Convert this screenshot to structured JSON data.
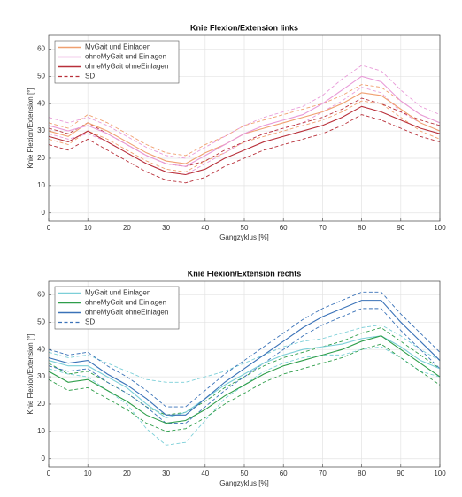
{
  "chart_data": [
    {
      "type": "line",
      "title": "Knie Flexion/Extension links",
      "x_label": "Gangzyklus [%]",
      "y_label": "Knie Flexion/Extension [°]",
      "x": [
        0,
        5,
        10,
        15,
        20,
        25,
        30,
        35,
        40,
        45,
        50,
        55,
        60,
        65,
        70,
        75,
        80,
        85,
        90,
        95,
        100
      ],
      "xlim": [
        0,
        100
      ],
      "xticks": [
        0,
        10,
        20,
        30,
        40,
        50,
        60,
        70,
        80,
        90,
        100
      ],
      "ylim": [
        -3,
        65
      ],
      "yticks": [
        0,
        10,
        20,
        30,
        40,
        50,
        60
      ],
      "grid": true,
      "legend": "upper left",
      "sd_label": "SD",
      "series": [
        {
          "name": "MyGait und Einlagen",
          "color": "#f0a070",
          "values": [
            30,
            28,
            33,
            30,
            26,
            22,
            19,
            18,
            22,
            25,
            29,
            31,
            33,
            35,
            37,
            40,
            44,
            43,
            38,
            33,
            30
          ],
          "sd_upper": [
            33,
            31,
            36,
            33,
            29,
            25,
            22,
            21,
            25,
            28,
            32,
            34,
            36,
            38,
            40,
            43,
            47,
            46,
            41,
            36,
            33
          ],
          "sd_lower": [
            27,
            25,
            30,
            27,
            23,
            19,
            16,
            15,
            19,
            22,
            26,
            28,
            30,
            32,
            34,
            37,
            41,
            40,
            35,
            30,
            27
          ]
        },
        {
          "name": "ohneMyGait und Einlagen",
          "color": "#e89ad8",
          "values": [
            32,
            30,
            32,
            29,
            25,
            21,
            18,
            17,
            21,
            25,
            29,
            32,
            34,
            36,
            40,
            45,
            50,
            48,
            41,
            36,
            33
          ],
          "sd_upper": [
            35,
            33,
            35,
            32,
            28,
            24,
            21,
            20,
            24,
            28,
            32,
            35,
            37,
            39,
            43,
            49,
            54,
            52,
            45,
            39,
            36
          ],
          "sd_lower": [
            29,
            27,
            29,
            26,
            22,
            18,
            15,
            14,
            18,
            22,
            26,
            29,
            31,
            33,
            37,
            41,
            46,
            44,
            37,
            33,
            30
          ]
        },
        {
          "name": "ohneMyGait ohneEinlagen",
          "color": "#b8303a",
          "values": [
            28,
            26,
            30,
            26,
            22,
            18,
            15,
            14,
            16,
            20,
            23,
            26,
            28,
            30,
            32,
            35,
            39,
            37,
            34,
            31,
            29
          ],
          "sd_upper": [
            31,
            29,
            33,
            29,
            25,
            21,
            18,
            17,
            19,
            23,
            26,
            29,
            31,
            33,
            35,
            38,
            42,
            40,
            37,
            34,
            32
          ],
          "sd_lower": [
            25,
            23,
            27,
            23,
            19,
            15,
            12,
            11,
            13,
            17,
            20,
            23,
            25,
            27,
            29,
            32,
            36,
            34,
            31,
            28,
            26
          ]
        }
      ]
    },
    {
      "type": "line",
      "title": "Knie Flexion/Extension rechts",
      "x_label": "Gangzyklus [%]",
      "y_label": "Knie Flexion/Extension [°]",
      "x": [
        0,
        5,
        10,
        15,
        20,
        25,
        30,
        35,
        40,
        45,
        50,
        55,
        60,
        65,
        70,
        75,
        80,
        85,
        90,
        95,
        100
      ],
      "xlim": [
        0,
        100
      ],
      "xticks": [
        0,
        10,
        20,
        30,
        40,
        50,
        60,
        70,
        80,
        90,
        100
      ],
      "ylim": [
        -3,
        65
      ],
      "yticks": [
        0,
        10,
        20,
        30,
        40,
        50,
        60
      ],
      "grid": true,
      "legend": "upper left",
      "sd_label": "SD",
      "series": [
        {
          "name": "MyGait und Einlagen",
          "color": "#7ccfd8",
          "values": [
            36,
            34,
            34,
            30,
            26,
            20,
            15,
            17,
            22,
            27,
            31,
            35,
            38,
            40,
            41,
            42,
            44,
            45,
            41,
            36,
            33
          ],
          "sd_upper": [
            39,
            37,
            38,
            35,
            32,
            29,
            28,
            28,
            30,
            32,
            35,
            38,
            41,
            43,
            44,
            46,
            48,
            49,
            45,
            40,
            36
          ],
          "sd_lower": [
            33,
            31,
            30,
            25,
            20,
            11,
            5,
            6,
            14,
            22,
            27,
            32,
            35,
            37,
            38,
            38,
            40,
            41,
            37,
            32,
            30
          ]
        },
        {
          "name": "ohneMyGait und Einlagen",
          "color": "#2e9e4a",
          "values": [
            32,
            28,
            29,
            25,
            21,
            16,
            13,
            14,
            18,
            23,
            27,
            31,
            34,
            36,
            38,
            40,
            43,
            45,
            40,
            35,
            30
          ],
          "sd_upper": [
            35,
            31,
            32,
            28,
            24,
            19,
            16,
            17,
            21,
            26,
            30,
            34,
            37,
            39,
            41,
            43,
            46,
            48,
            43,
            38,
            33
          ],
          "sd_lower": [
            29,
            25,
            26,
            22,
            18,
            13,
            10,
            11,
            15,
            20,
            24,
            28,
            31,
            33,
            35,
            37,
            40,
            42,
            37,
            32,
            27
          ]
        },
        {
          "name": "ohneMyGait ohneEinlagen",
          "color": "#3a72b8",
          "values": [
            37,
            35,
            36,
            31,
            27,
            22,
            16,
            16,
            22,
            28,
            33,
            38,
            43,
            48,
            52,
            55,
            58,
            58,
            50,
            43,
            36
          ],
          "sd_upper": [
            40,
            38,
            39,
            34,
            30,
            25,
            19,
            19,
            25,
            31,
            36,
            41,
            46,
            51,
            55,
            58,
            61,
            61,
            53,
            46,
            39
          ],
          "sd_lower": [
            34,
            32,
            33,
            28,
            24,
            19,
            13,
            13,
            19,
            25,
            30,
            35,
            40,
            45,
            49,
            52,
            55,
            55,
            47,
            40,
            33
          ]
        }
      ]
    }
  ]
}
